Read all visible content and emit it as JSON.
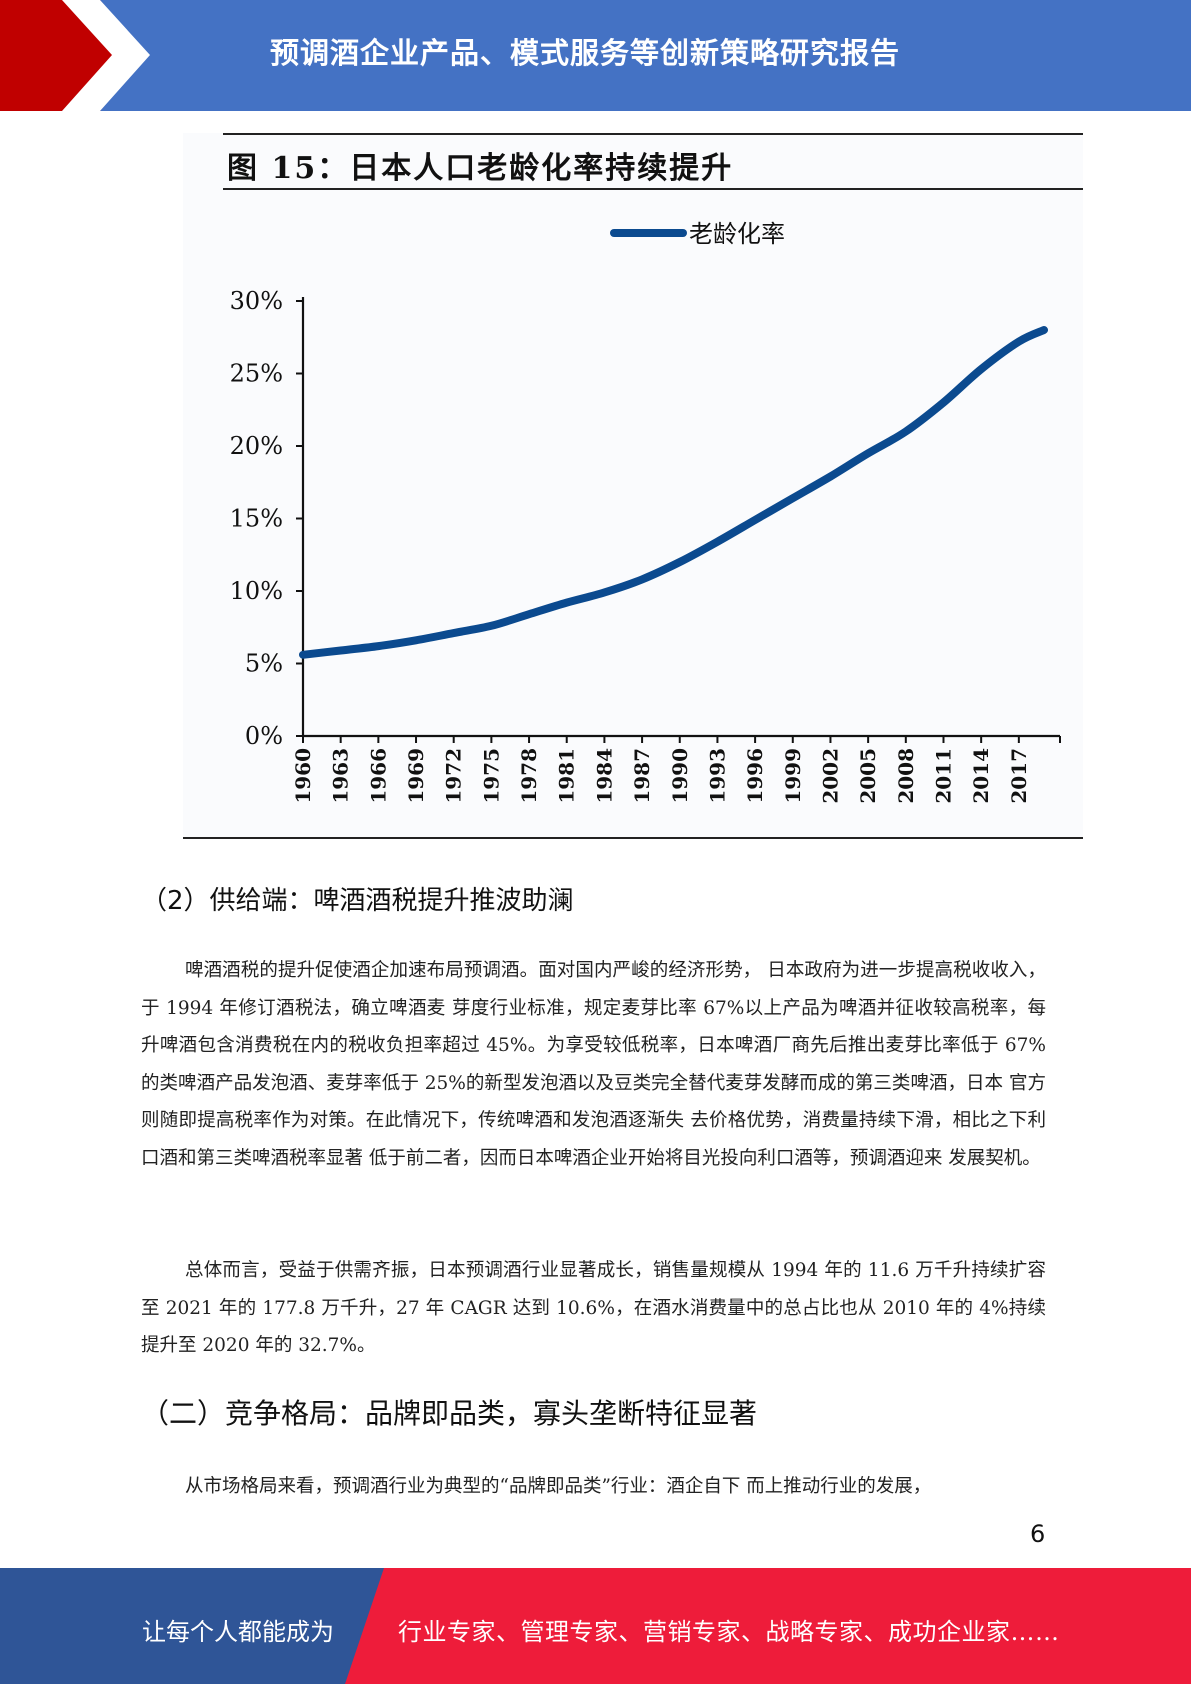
{
  "header": {
    "title": "预调酒企业产品、模式服务等创新策略研究报告",
    "colors": {
      "blue": "#4472c4",
      "red": "#c00000"
    }
  },
  "figure": {
    "title": "图 15：日本人口老龄化率持续提升"
  },
  "chart_data": {
    "type": "line",
    "title": "图 15：日本人口老龄化率持续提升",
    "series": [
      {
        "name": "老龄化率",
        "color": "#0b4a8f",
        "x": [
          1960,
          1963,
          1966,
          1969,
          1972,
          1975,
          1978,
          1981,
          1984,
          1987,
          1990,
          1993,
          1996,
          1999,
          2002,
          2005,
          2008,
          2011,
          2014,
          2017,
          2019
        ],
        "values": [
          5.6,
          5.9,
          6.2,
          6.6,
          7.1,
          7.6,
          8.4,
          9.2,
          9.9,
          10.8,
          12.0,
          13.4,
          14.9,
          16.4,
          17.9,
          19.5,
          21.0,
          23.0,
          25.3,
          27.2,
          28.0
        ]
      }
    ],
    "x_ticks": [
      "1960",
      "1963",
      "1966",
      "1969",
      "1972",
      "1975",
      "1978",
      "1981",
      "1984",
      "1987",
      "1990",
      "1993",
      "1996",
      "1999",
      "2002",
      "2005",
      "2008",
      "2011",
      "2014",
      "2017"
    ],
    "y_ticks": [
      "0%",
      "5%",
      "10%",
      "15%",
      "20%",
      "25%",
      "30%"
    ],
    "ylim": [
      0,
      30
    ],
    "legend_position": "top-center",
    "grid": false
  },
  "sections": {
    "supply_heading": "（2）供给端：啤酒酒税提升推波助澜",
    "para1": "啤酒酒税的提升促使酒企加速布局预调酒。面对国内严峻的经济形势， 日本政府为进一步提高税收收入，于 1994 年修订酒税法，确立啤酒麦 芽度行业标准，规定麦芽比率 67%以上产品为啤酒并征收较高税率，每 升啤酒包含消费税在内的税收负担率超过 45%。为享受较低税率，日本啤酒厂商先后推出麦芽比率低于 67%的类啤酒产品发泡酒、麦芽率低于 25%的新型发泡酒以及豆类完全替代麦芽发酵而成的第三类啤酒，日本 官方则随即提高税率作为对策。在此情况下，传统啤酒和发泡酒逐渐失 去价格优势，消费量持续下滑，相比之下利口酒和第三类啤酒税率显著 低于前二者，因而日本啤酒企业开始将目光投向利口酒等，预调酒迎来 发展契机。",
    "para2": "总体而言，受益于供需齐振，日本预调酒行业显著成长，销售量规模从 1994 年的 11.6 万千升持续扩容至 2021 年的 177.8 万千升，27 年 CAGR 达到 10.6%，在酒水消费量中的总占比也从 2010 年的 4%持续提升至 2020 年的 32.7%。",
    "competition_heading": "（二）竞争格局：品牌即品类，寡头垄断特征显著",
    "para3": "从市场格局来看，预调酒行业为典型的“品牌即品类”行业：酒企自下 而上推动行业的发展，"
  },
  "page_number": "6",
  "footer": {
    "left_text": "让每个人都能成为",
    "right_text": "行业专家、管理专家、营销专家、战略专家、成功企业家……",
    "colors": {
      "left": "#2f5597",
      "right": "#ee1c3a"
    }
  }
}
